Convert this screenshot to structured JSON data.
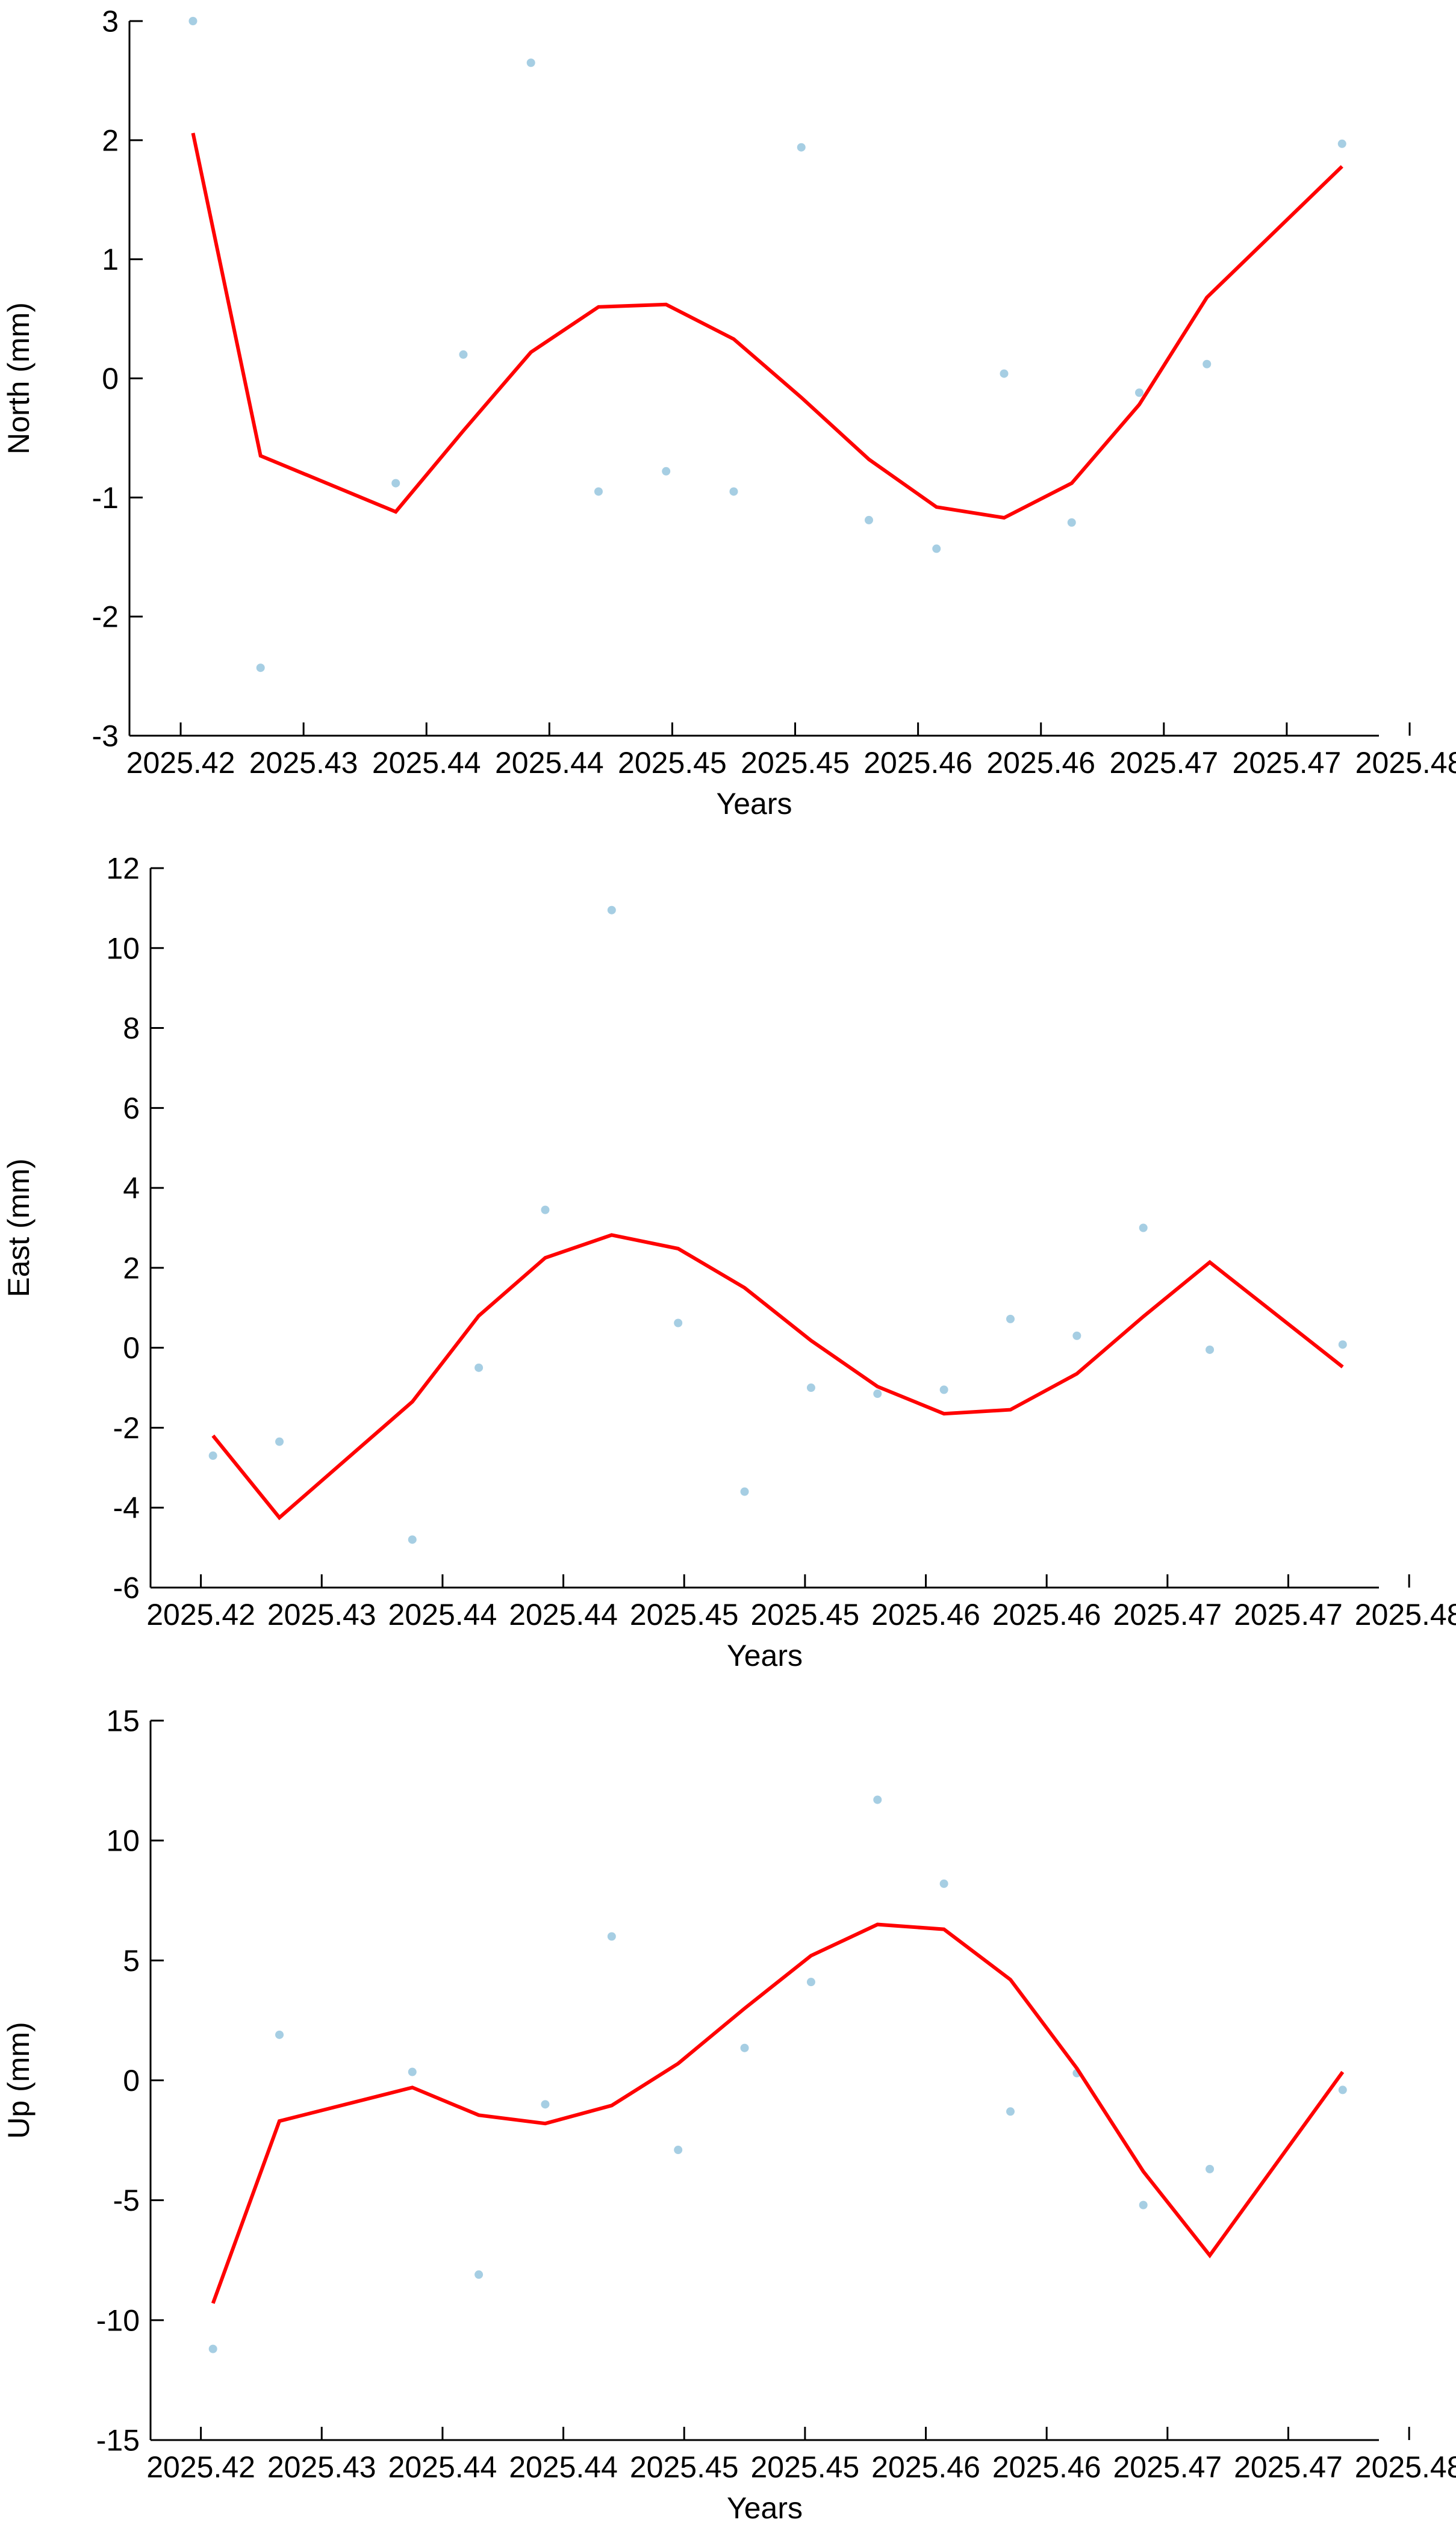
{
  "chart_data": [
    {
      "type": "scatter",
      "xlabel": "Years",
      "ylabel": "North (mm)",
      "ylim": [
        -3,
        3
      ],
      "yticks": [
        -3,
        -2,
        -1,
        0,
        1,
        2,
        3
      ],
      "xlim": [
        2025.4175,
        2025.4785
      ],
      "xticks": [
        2025.42,
        2025.426,
        2025.432,
        2025.438,
        2025.444,
        2025.45,
        2025.456,
        2025.462,
        2025.468,
        2025.474,
        2025.48
      ],
      "xtick_labels": [
        "2025.42",
        "2025.43",
        "2025.44",
        "2025.44",
        "2025.45",
        "2025.45",
        "2025.46",
        "2025.46",
        "2025.47",
        "2025.47",
        "2025.48"
      ],
      "grid": false,
      "series": [
        {
          "kind": "points",
          "color": "#a6cee3",
          "x": [
            2025.4206,
            2025.4239,
            2025.4305,
            2025.4338,
            2025.4371,
            2025.4404,
            2025.4437,
            2025.447,
            2025.4503,
            2025.4536,
            2025.4569,
            2025.4602,
            2025.4635,
            2025.4668,
            2025.4701,
            2025.4767
          ],
          "y": [
            3.0,
            -2.43,
            -0.88,
            0.2,
            2.65,
            -0.95,
            -0.78,
            -0.95,
            1.94,
            -1.19,
            -1.43,
            0.04,
            -1.21,
            -0.12,
            0.12,
            1.97
          ]
        },
        {
          "kind": "line",
          "color": "#ff0000",
          "x": [
            2025.4206,
            2025.4239,
            2025.4305,
            2025.4338,
            2025.4371,
            2025.4404,
            2025.4437,
            2025.447,
            2025.4503,
            2025.4536,
            2025.4569,
            2025.4602,
            2025.4635,
            2025.4668,
            2025.4701,
            2025.4767
          ],
          "y": [
            2.06,
            -0.65,
            -1.12,
            -0.44,
            0.22,
            0.6,
            0.62,
            0.33,
            -0.16,
            -0.68,
            -1.08,
            -1.17,
            -0.88,
            -0.22,
            0.68,
            1.78
          ]
        }
      ]
    },
    {
      "type": "scatter",
      "xlabel": "Years",
      "ylabel": "East (mm)",
      "ylim": [
        -6,
        12
      ],
      "yticks": [
        -6,
        -4,
        -2,
        0,
        2,
        4,
        6,
        8,
        10,
        12
      ],
      "xlim": [
        2025.4175,
        2025.4785
      ],
      "xticks": [
        2025.42,
        2025.426,
        2025.432,
        2025.438,
        2025.444,
        2025.45,
        2025.456,
        2025.462,
        2025.468,
        2025.474,
        2025.48
      ],
      "xtick_labels": [
        "2025.42",
        "2025.43",
        "2025.44",
        "2025.44",
        "2025.45",
        "2025.45",
        "2025.46",
        "2025.46",
        "2025.47",
        "2025.47",
        "2025.48"
      ],
      "grid": false,
      "series": [
        {
          "kind": "points",
          "color": "#a6cee3",
          "x": [
            2025.4206,
            2025.4239,
            2025.4305,
            2025.4338,
            2025.4371,
            2025.4404,
            2025.4437,
            2025.447,
            2025.4503,
            2025.4536,
            2025.4569,
            2025.4602,
            2025.4635,
            2025.4668,
            2025.4701,
            2025.4767
          ],
          "y": [
            -2.7,
            -2.35,
            -4.8,
            -0.5,
            3.45,
            10.95,
            0.62,
            -3.6,
            -1.0,
            -1.15,
            -1.05,
            0.72,
            0.3,
            3.0,
            -0.05,
            0.08
          ]
        },
        {
          "kind": "line",
          "color": "#ff0000",
          "x": [
            2025.4206,
            2025.4239,
            2025.4305,
            2025.4338,
            2025.4371,
            2025.4404,
            2025.4437,
            2025.447,
            2025.4503,
            2025.4536,
            2025.4569,
            2025.4602,
            2025.4635,
            2025.4668,
            2025.4701,
            2025.4767
          ],
          "y": [
            -2.2,
            -4.25,
            -1.35,
            0.8,
            2.25,
            2.82,
            2.48,
            1.5,
            0.18,
            -0.97,
            -1.65,
            -1.55,
            -0.65,
            0.78,
            2.14,
            -0.48
          ]
        }
      ]
    },
    {
      "type": "scatter",
      "xlabel": "Years",
      "ylabel": "Up (mm)",
      "ylim": [
        -15,
        15
      ],
      "yticks": [
        -15,
        -10,
        -5,
        0,
        5,
        10,
        15
      ],
      "xlim": [
        2025.4175,
        2025.4785
      ],
      "xticks": [
        2025.42,
        2025.426,
        2025.432,
        2025.438,
        2025.444,
        2025.45,
        2025.456,
        2025.462,
        2025.468,
        2025.474,
        2025.48
      ],
      "xtick_labels": [
        "2025.42",
        "2025.43",
        "2025.44",
        "2025.44",
        "2025.45",
        "2025.45",
        "2025.46",
        "2025.46",
        "2025.47",
        "2025.47",
        "2025.48"
      ],
      "grid": false,
      "series": [
        {
          "kind": "points",
          "color": "#a6cee3",
          "x": [
            2025.4206,
            2025.4239,
            2025.4305,
            2025.4338,
            2025.4371,
            2025.4404,
            2025.4437,
            2025.447,
            2025.4503,
            2025.4536,
            2025.4569,
            2025.4602,
            2025.4635,
            2025.4668,
            2025.4701,
            2025.4767
          ],
          "y": [
            -11.2,
            1.9,
            0.35,
            -8.1,
            -1.0,
            6.0,
            -2.9,
            1.35,
            4.1,
            11.7,
            8.2,
            -1.3,
            0.3,
            -5.2,
            -3.7,
            -0.4
          ]
        },
        {
          "kind": "line",
          "color": "#ff0000",
          "x": [
            2025.4206,
            2025.4239,
            2025.4305,
            2025.4338,
            2025.4371,
            2025.4404,
            2025.4437,
            2025.447,
            2025.4503,
            2025.4536,
            2025.4569,
            2025.4602,
            2025.4635,
            2025.4668,
            2025.4701,
            2025.4767
          ],
          "y": [
            -9.3,
            -1.7,
            -0.3,
            -1.45,
            -1.8,
            -1.05,
            0.7,
            3.0,
            5.2,
            6.5,
            6.3,
            4.2,
            0.5,
            -3.8,
            -7.3,
            0.35
          ]
        }
      ]
    }
  ]
}
